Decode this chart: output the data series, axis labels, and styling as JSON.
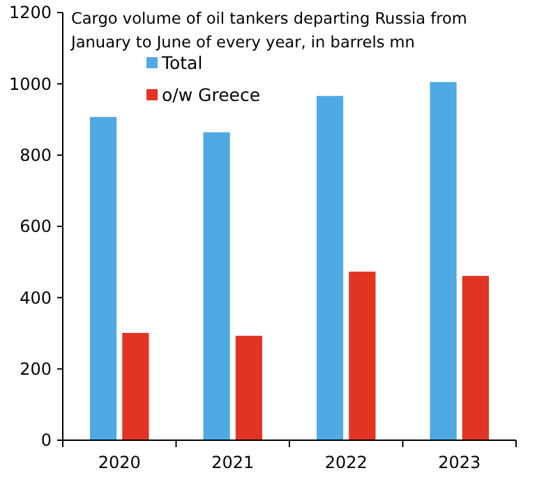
{
  "chart_data": {
    "type": "bar",
    "title": "Cargo volume of oil tankers departing Russia from January to June of every year, in barrels mn",
    "categories": [
      "2020",
      "2021",
      "2022",
      "2023"
    ],
    "series": [
      {
        "name": "Total",
        "color": "#4faae3",
        "values": [
          907,
          864,
          966,
          1005
        ]
      },
      {
        "name": "o/w Greece",
        "color": "#e23424",
        "values": [
          301,
          293,
          473,
          461
        ]
      }
    ],
    "ylim": [
      0,
      1200
    ],
    "yticks": [
      0,
      200,
      400,
      600,
      800,
      1000,
      1200
    ],
    "grid": false,
    "legend": "top"
  }
}
